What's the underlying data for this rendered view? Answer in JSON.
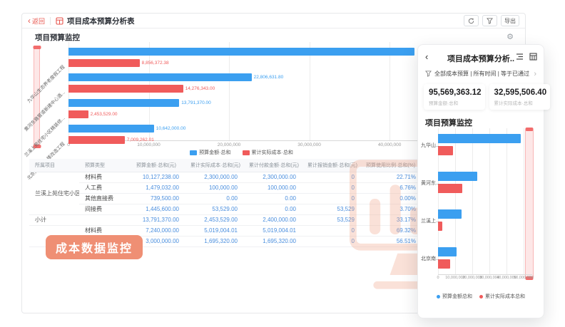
{
  "topbar": {
    "back_label": "返回",
    "title": "项目成本预算分析表",
    "export_label": "导出"
  },
  "main": {
    "section_title": "项目预算监控",
    "badge": "成本数据监控",
    "table": {
      "headers": [
        "所属项目",
        "预算类型",
        "预算金额·总和(元)",
        "累计实际成本·总和(元)",
        "累计付款金额·总和(元)",
        "累计报销金额·总和(元)",
        "预算使用比例·总和(%)"
      ],
      "rows": [
        {
          "project": "兰溪上苑住宅小区精装修第...",
          "project_span": 4,
          "type": "材料费",
          "budget": "10,127,238.00",
          "actual": "2,300,000.00",
          "payment": "2,300,000.00",
          "reimburse": "0",
          "ratio": "22.71%"
        },
        {
          "type": "人工费",
          "budget": "1,479,032.00",
          "actual": "100,000.00",
          "payment": "100,000.00",
          "reimburse": "0",
          "ratio": "6.76%"
        },
        {
          "type": "其他直接费",
          "budget": "739,500.00",
          "actual": "0.00",
          "payment": "0.00",
          "reimburse": "0",
          "ratio": "0.00%"
        },
        {
          "type": "间接费",
          "budget": "1,445,600.00",
          "actual": "53,529.00",
          "payment": "0.00",
          "reimburse": "53,529",
          "ratio": "3.70%"
        },
        {
          "project": "小计",
          "project_span": 1,
          "subtotal": true,
          "type": "",
          "budget": "13,791,370.00",
          "actual": "2,453,529.00",
          "payment": "2,400,000.00",
          "reimburse": "53,529",
          "ratio": "33.17%"
        },
        {
          "project": "",
          "project_span": 2,
          "type": "材料费",
          "budget": "7,240,000.00",
          "actual": "5,019,004.01",
          "payment": "5,019,004.01",
          "reimburse": "0",
          "ratio": "69.32%"
        },
        {
          "type": "",
          "budget": "3,000,000.00",
          "actual": "1,695,320.00",
          "payment": "1,695,320.00",
          "reimburse": "0",
          "ratio": "56.51%"
        }
      ]
    }
  },
  "panel": {
    "title": "项目成本预算分析..",
    "filter_text": "全部成本预算 | 所有时间 | 等于已通过",
    "stats": [
      {
        "value": "95,569,363.12",
        "label": "预算金额·总和"
      },
      {
        "value": "32,595,506.40",
        "label": "累计实际成本·总和"
      }
    ],
    "section_title": "项目预算监控"
  },
  "colors": {
    "budget_blue": "#3b9ff0",
    "actual_red": "#f05b5b",
    "accent_red": "#e8564e",
    "badge_bg": "#ef8f74",
    "link_blue": "#4a8ede",
    "watermark_peach": "#f2a488"
  },
  "chart_data": [
    {
      "id": "main",
      "type": "bar",
      "orientation": "horizontal",
      "title": "项目预算监控",
      "categories": [
        "九华山生态养老度假工程",
        "黄河东路管道新建中心酒...",
        "兰溪上苑住宅小区精装修...",
        "北京南路综合楼改造工程"
      ],
      "series": [
        {
          "name": "预算金额·总和",
          "color": "#3b9ff0",
          "values": [
            48329361.32,
            22806631.8,
            13791370.0,
            10642000.0
          ],
          "labels": [
            "",
            "22,806,631.80",
            "13,791,370.00",
            "10,642,000.00"
          ]
        },
        {
          "name": "累计实际成本·总和",
          "color": "#f05b5b",
          "values": [
            8856372.38,
            14276343.0,
            2453529.0,
            7009262.01
          ],
          "labels": [
            "8,856,372.38",
            "14,276,343.00",
            "2,453,529.00",
            "7,009,262.01"
          ]
        }
      ],
      "x_ticks": [
        "0",
        "10,000,000",
        "20,000,000",
        "30,000,000",
        "40,000,000"
      ],
      "x_tick_values": [
        0,
        10000000,
        20000000,
        30000000,
        40000000
      ],
      "xlim": [
        0,
        43100000
      ],
      "grid": true,
      "legend_position": "bottom",
      "note": "first budget bar is clipped at the right plot edge"
    },
    {
      "id": "panel",
      "type": "bar",
      "orientation": "horizontal",
      "title": "项目预算监控",
      "categories": [
        "九华山..",
        "黄河东..",
        "兰溪上..",
        "北京南.."
      ],
      "series": [
        {
          "name": "预算金额总和",
          "color": "#3b9ff0",
          "values": [
            48329361.32,
            22806631.8,
            13791370.0,
            10642000.0
          ]
        },
        {
          "name": "累计实际成本总和",
          "color": "#f05b5b",
          "values": [
            8856372.38,
            14276343.0,
            2453529.0,
            7009262.01
          ]
        }
      ],
      "x_ticks": [
        "0",
        "10,000,000",
        "20,000,000",
        "30,000,000",
        "40,000,000",
        "50,000,000"
      ],
      "x_tick_values": [
        0,
        10000000,
        20000000,
        30000000,
        40000000,
        50000000
      ],
      "xlim": [
        0,
        50000000
      ],
      "grid": true,
      "legend_position": "bottom"
    }
  ]
}
